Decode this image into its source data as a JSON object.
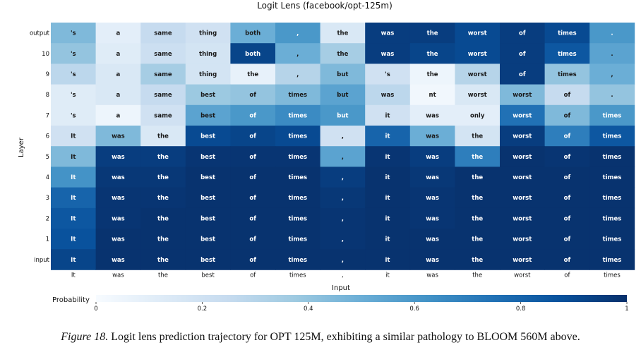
{
  "chart_data": {
    "type": "heatmap",
    "title": "Logit Lens (facebook/opt-125m)",
    "xlabel": "Input",
    "ylabel": "Layer",
    "colorbar_label": "Probability",
    "colorbar_ticks": [
      0,
      0.2,
      0.4,
      0.6,
      0.8,
      1
    ],
    "color_min": "#f7fbff",
    "color_max": "#08306b",
    "columns": [
      "It",
      "was",
      "the",
      "best",
      "of",
      "times",
      ",",
      "it",
      "was",
      "the",
      "worst",
      "of",
      "times"
    ],
    "rows": [
      "output",
      "10",
      "9",
      "8",
      "7",
      "6",
      "5",
      "4",
      "3",
      "2",
      "1",
      "input"
    ],
    "tokens": [
      [
        "'s",
        "a",
        "same",
        "thing",
        "both",
        ",",
        "the",
        "was",
        "the",
        "worst",
        "of",
        "times",
        "."
      ],
      [
        "'s",
        "a",
        "same",
        "thing",
        "both",
        ",",
        "the",
        "was",
        "the",
        "worst",
        "of",
        "times",
        "."
      ],
      [
        "'s",
        "a",
        "same",
        "thing",
        "the",
        ",",
        "but",
        "'s",
        "the",
        "worst",
        "of",
        "times",
        ","
      ],
      [
        "'s",
        "a",
        "same",
        "best",
        "of",
        "times",
        "but",
        "was",
        "nt",
        "worst",
        "worst",
        "of",
        "."
      ],
      [
        "'s",
        "a",
        "same",
        "best",
        "of",
        "times",
        "but",
        "it",
        "was",
        "only",
        "worst",
        "of",
        "times"
      ],
      [
        "It",
        "was",
        "the",
        "best",
        "of",
        "times",
        ",",
        "it",
        "was",
        "the",
        "worst",
        "of",
        "times"
      ],
      [
        "It",
        "was",
        "the",
        "best",
        "of",
        "times",
        ",",
        "it",
        "was",
        "the",
        "worst",
        "of",
        "times"
      ],
      [
        "It",
        "was",
        "the",
        "best",
        "of",
        "times",
        ",",
        "it",
        "was",
        "the",
        "worst",
        "of",
        "times"
      ],
      [
        "It",
        "was",
        "the",
        "best",
        "of",
        "times",
        ",",
        "it",
        "was",
        "the",
        "worst",
        "of",
        "times"
      ],
      [
        "It",
        "was",
        "the",
        "best",
        "of",
        "times",
        ",",
        "it",
        "was",
        "the",
        "worst",
        "of",
        "times"
      ],
      [
        "It",
        "was",
        "the",
        "best",
        "of",
        "times",
        ",",
        "it",
        "was",
        "the",
        "worst",
        "of",
        "times"
      ],
      [
        "It",
        "was",
        "the",
        "best",
        "of",
        "times",
        ",",
        "it",
        "was",
        "the",
        "worst",
        "of",
        "times"
      ]
    ],
    "values": [
      [
        0.45,
        0.1,
        0.25,
        0.2,
        0.5,
        0.6,
        0.15,
        0.95,
        0.95,
        0.9,
        0.95,
        0.9,
        0.6
      ],
      [
        0.4,
        0.12,
        0.22,
        0.18,
        0.92,
        0.5,
        0.35,
        0.95,
        0.92,
        0.9,
        0.95,
        0.85,
        0.55
      ],
      [
        0.28,
        0.15,
        0.35,
        0.18,
        0.08,
        0.3,
        0.45,
        0.2,
        0.05,
        0.3,
        0.95,
        0.4,
        0.5
      ],
      [
        0.12,
        0.15,
        0.25,
        0.38,
        0.4,
        0.45,
        0.55,
        0.28,
        0.03,
        0.15,
        0.45,
        0.25,
        0.4
      ],
      [
        0.12,
        0.05,
        0.2,
        0.55,
        0.6,
        0.65,
        0.6,
        0.2,
        0.1,
        0.1,
        0.75,
        0.45,
        0.6
      ],
      [
        0.2,
        0.45,
        0.15,
        0.9,
        0.92,
        0.9,
        0.2,
        0.8,
        0.5,
        0.18,
        0.95,
        0.7,
        0.85
      ],
      [
        0.45,
        0.95,
        0.95,
        0.98,
        0.98,
        0.98,
        0.55,
        0.98,
        0.95,
        0.7,
        0.99,
        0.98,
        0.99
      ],
      [
        0.62,
        0.97,
        0.97,
        0.99,
        0.99,
        0.99,
        0.95,
        0.99,
        0.97,
        0.99,
        0.99,
        0.99,
        0.99
      ],
      [
        0.8,
        0.98,
        0.98,
        0.99,
        0.99,
        0.99,
        0.97,
        0.99,
        0.98,
        0.99,
        0.99,
        0.99,
        0.99
      ],
      [
        0.85,
        0.98,
        0.99,
        0.99,
        0.99,
        0.99,
        0.98,
        0.99,
        0.98,
        0.99,
        0.99,
        0.99,
        0.99
      ],
      [
        0.87,
        0.99,
        0.99,
        0.99,
        0.99,
        0.99,
        0.98,
        0.99,
        0.99,
        0.99,
        0.99,
        0.99,
        0.99
      ],
      [
        0.92,
        0.99,
        0.99,
        0.99,
        0.99,
        0.99,
        0.99,
        0.99,
        0.99,
        0.99,
        0.99,
        0.99,
        0.99
      ]
    ]
  },
  "caption": {
    "label": "Figure 18.",
    "text": " Logit lens prediction trajectory for OPT 125M, exhibiting a similar pathology to BLOOM 560M above."
  }
}
